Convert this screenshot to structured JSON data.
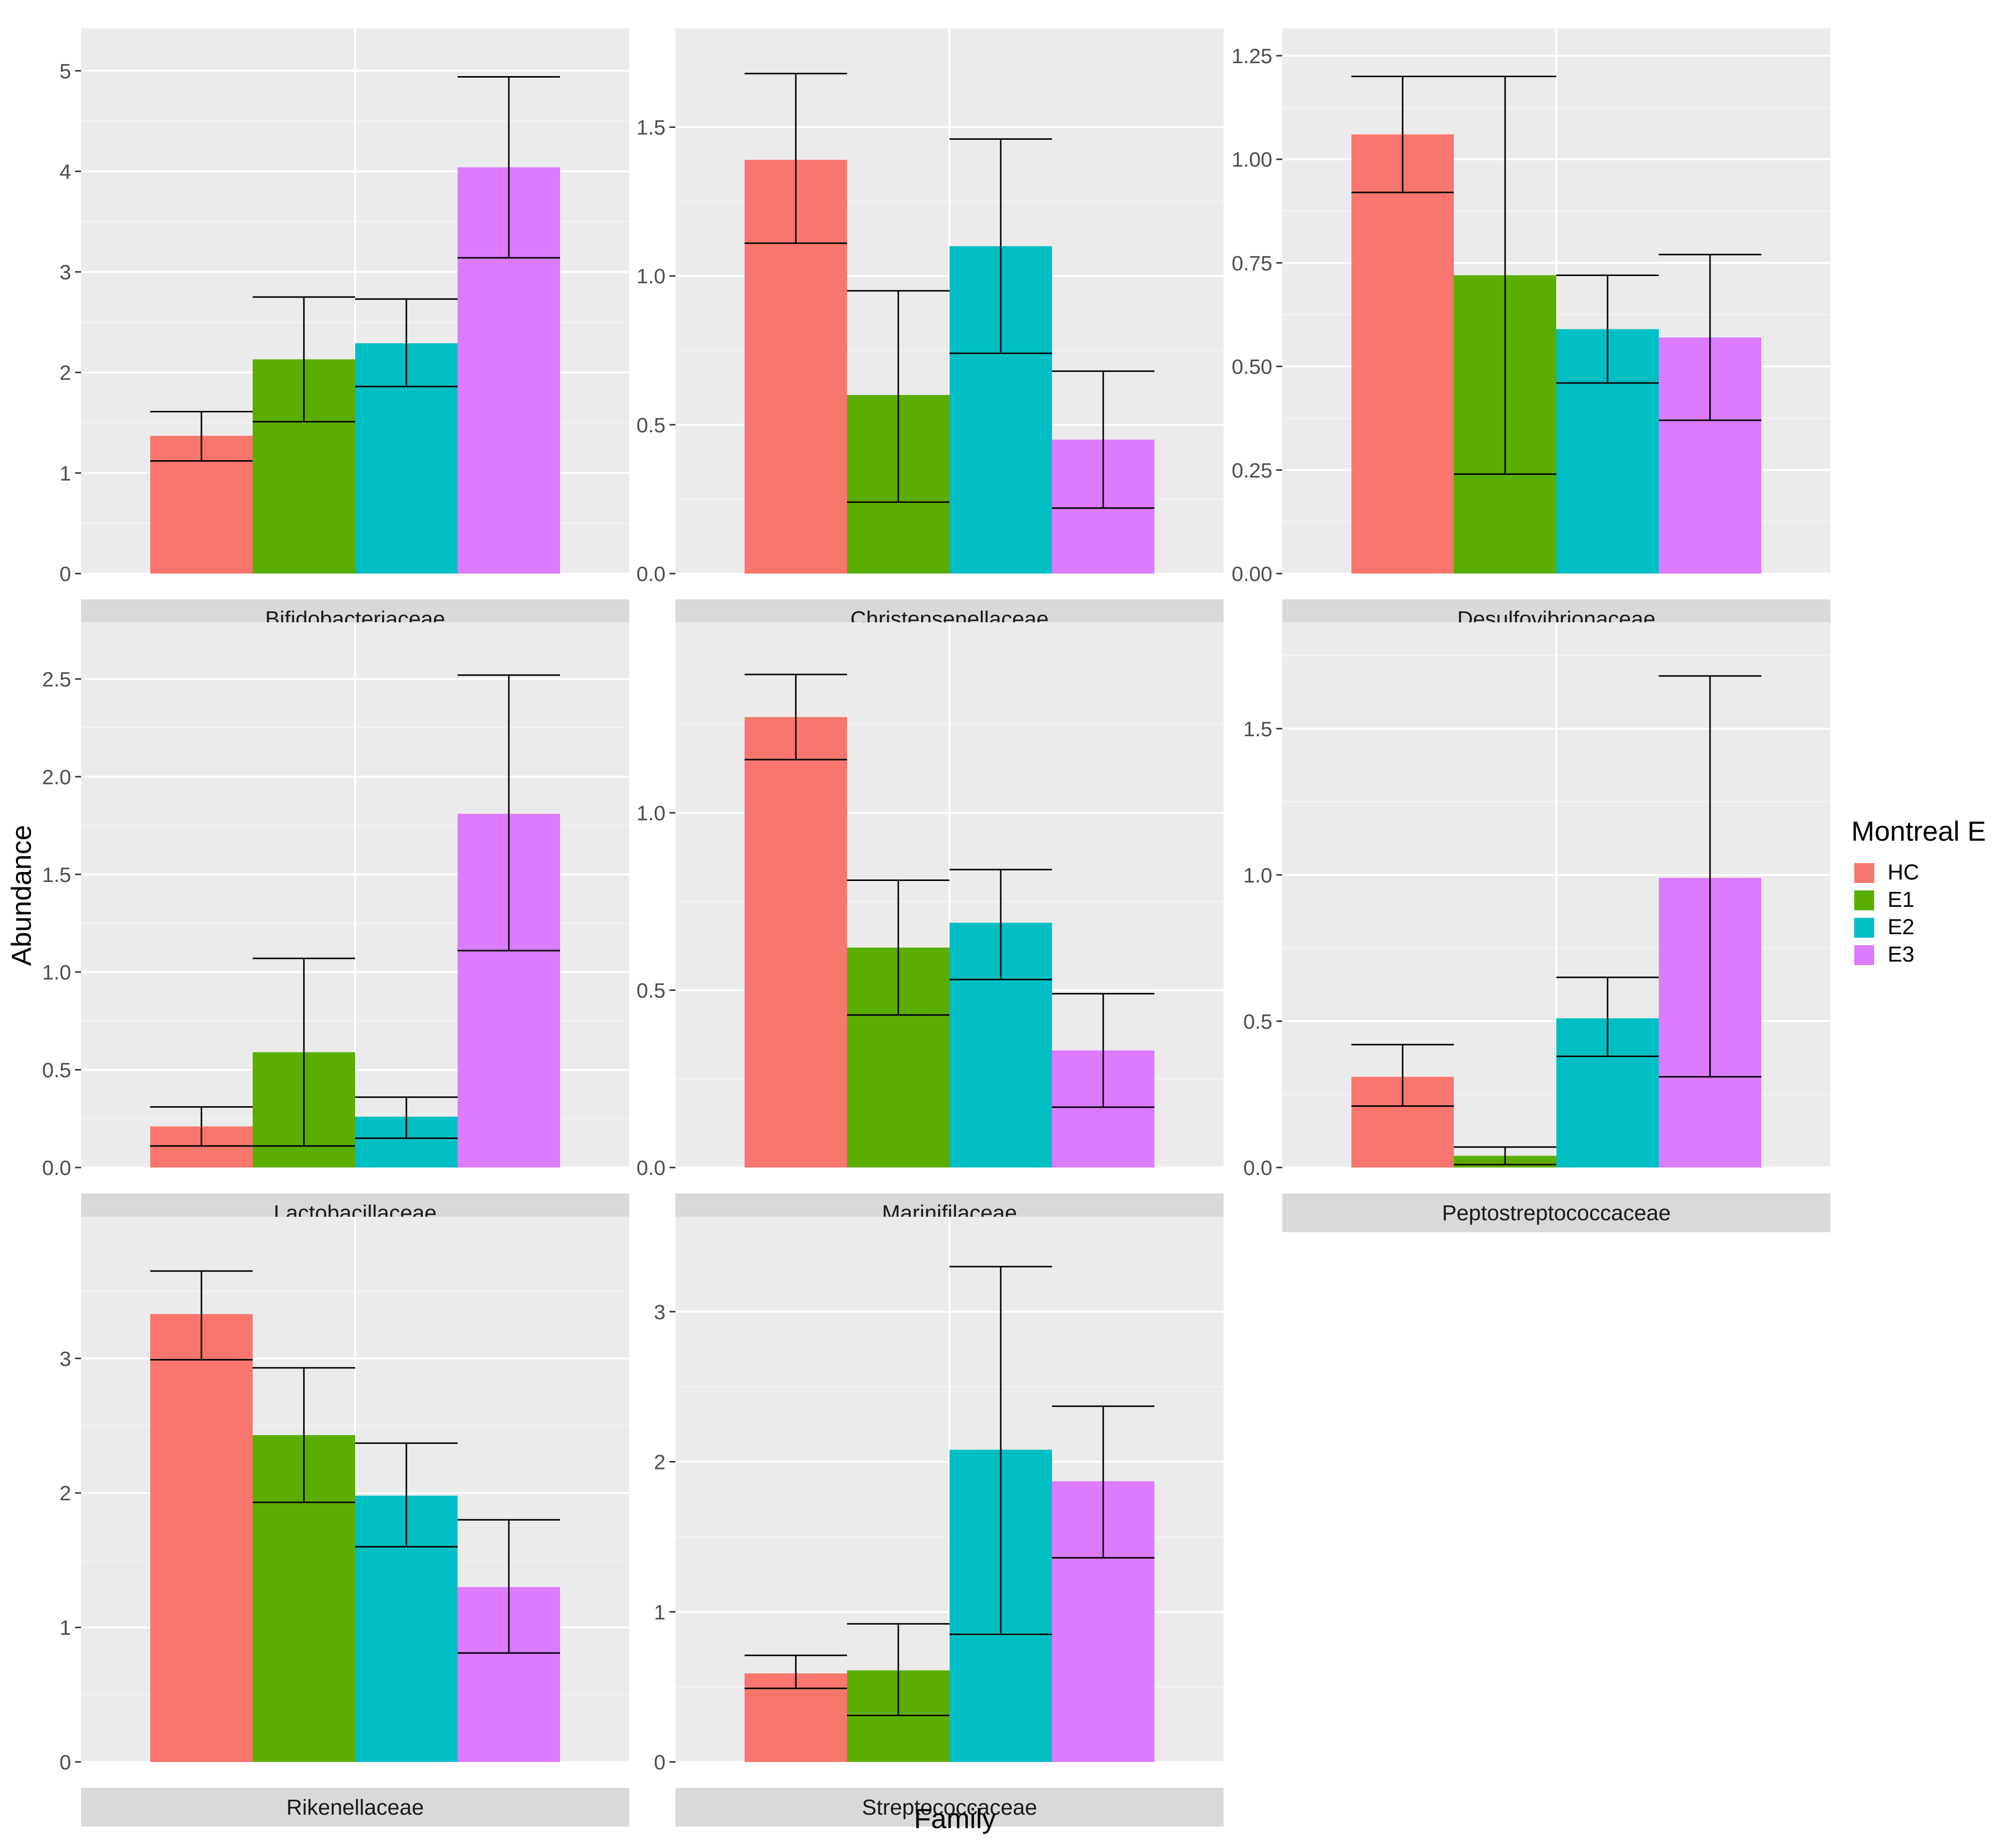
{
  "chart_data": {
    "type": "bar",
    "xlabel": "Family",
    "ylabel": "Abundance",
    "legend": {
      "title": "Montreal E",
      "position": "right",
      "entries": [
        {
          "label": "HC",
          "color": "#F8766D"
        },
        {
          "label": "E1",
          "color": "#5BAE00"
        },
        {
          "label": "E2",
          "color": "#00BFC4"
        },
        {
          "label": "E3",
          "color": "#DC7BFD"
        }
      ]
    },
    "groups": [
      "HC",
      "E1",
      "E2",
      "E3"
    ],
    "panels": [
      {
        "title": "Bifidobacteriaceae",
        "ylim": [
          0,
          5.15
        ],
        "ticks": [
          0,
          1,
          2,
          3,
          4,
          5
        ],
        "tick_labels": [
          "0",
          "1",
          "2",
          "3",
          "4",
          "5"
        ],
        "values": [
          1.37,
          2.13,
          2.29,
          4.04
        ],
        "err_low": [
          1.12,
          1.51,
          1.86,
          3.14
        ],
        "err_high": [
          1.61,
          2.75,
          2.73,
          4.94
        ]
      },
      {
        "title": "Christensenellaceae",
        "ylim": [
          0,
          1.74
        ],
        "ticks": [
          0,
          0.5,
          1.0,
          1.5
        ],
        "tick_labels": [
          "0.0",
          "0.5",
          "1.0",
          "1.5"
        ],
        "values": [
          1.39,
          0.6,
          1.1,
          0.45
        ],
        "err_low": [
          1.11,
          0.24,
          0.74,
          0.22
        ],
        "err_high": [
          1.68,
          0.95,
          1.46,
          0.68
        ]
      },
      {
        "title": "Desulfovibrionaceae",
        "ylim": [
          0,
          1.25
        ],
        "ticks": [
          0,
          0.25,
          0.5,
          0.75,
          1.0,
          1.25
        ],
        "tick_labels": [
          "0.00",
          "0.25",
          "0.50",
          "0.75",
          "1.00",
          "1.25"
        ],
        "values": [
          1.06,
          0.72,
          0.59,
          0.57
        ],
        "err_low": [
          0.92,
          0.24,
          0.46,
          0.37
        ],
        "err_high": [
          1.2,
          1.2,
          0.72,
          0.77
        ]
      },
      {
        "title": "Lactobacillaceae",
        "ylim": [
          0,
          2.65
        ],
        "ticks": [
          0,
          0.5,
          1.0,
          1.5,
          2.0,
          2.5
        ],
        "tick_labels": [
          "0.0",
          "0.5",
          "1.0",
          "1.5",
          "2.0",
          "2.5"
        ],
        "values": [
          0.21,
          0.59,
          0.26,
          1.81
        ],
        "err_low": [
          0.11,
          0.11,
          0.15,
          1.11
        ],
        "err_high": [
          0.31,
          1.07,
          0.36,
          2.52
        ]
      },
      {
        "title": "Marinifilaceae",
        "ylim": [
          0,
          1.46
        ],
        "ticks": [
          0,
          0.5,
          1.0
        ],
        "tick_labels": [
          "0.0",
          "0.5",
          "1.0"
        ],
        "values": [
          1.27,
          0.62,
          0.69,
          0.33
        ],
        "err_low": [
          1.15,
          0.43,
          0.53,
          0.17
        ],
        "err_high": [
          1.39,
          0.81,
          0.84,
          0.49
        ]
      },
      {
        "title": "Peptostreptococcaceae",
        "ylim": [
          0,
          1.77
        ],
        "ticks": [
          0,
          0.5,
          1.0,
          1.5
        ],
        "tick_labels": [
          "0.0",
          "0.5",
          "1.0",
          "1.5"
        ],
        "values": [
          0.31,
          0.04,
          0.51,
          0.99
        ],
        "err_low": [
          0.21,
          0.01,
          0.38,
          0.31
        ],
        "err_high": [
          0.42,
          0.07,
          0.65,
          1.68
        ]
      },
      {
        "title": "Rikenellaceae",
        "ylim": [
          0,
          3.85
        ],
        "ticks": [
          0,
          1,
          2,
          3
        ],
        "tick_labels": [
          "0",
          "1",
          "2",
          "3"
        ],
        "values": [
          3.33,
          2.43,
          1.98,
          1.3
        ],
        "err_low": [
          2.99,
          1.93,
          1.6,
          0.81
        ],
        "err_high": [
          3.65,
          2.93,
          2.37,
          1.8
        ]
      },
      {
        "title": "Streptococcaceae",
        "ylim": [
          0,
          3.45
        ],
        "ticks": [
          0,
          1,
          2,
          3
        ],
        "tick_labels": [
          "0",
          "1",
          "2",
          "3"
        ],
        "values": [
          0.59,
          0.61,
          2.08,
          1.87
        ],
        "err_low": [
          0.49,
          0.31,
          0.85,
          1.36
        ],
        "err_high": [
          0.71,
          0.92,
          3.3,
          2.37
        ]
      }
    ]
  }
}
